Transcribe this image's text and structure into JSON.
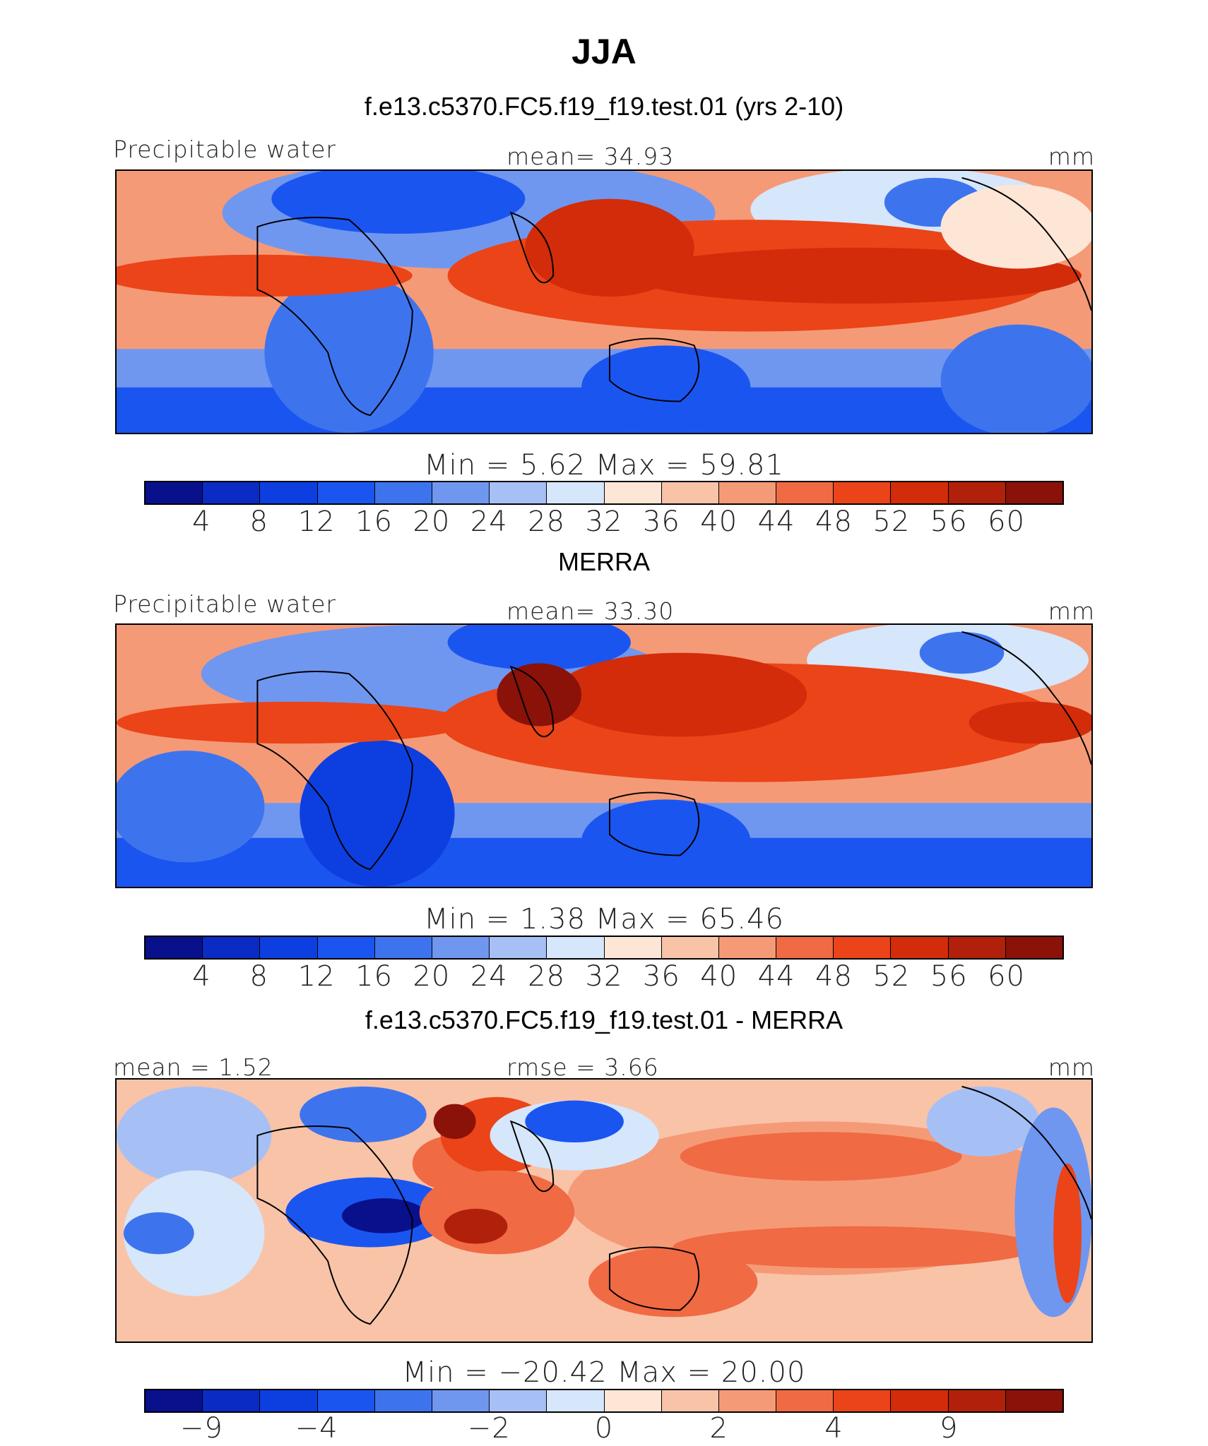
{
  "title": "JJA",
  "panels": [
    {
      "subtitle": "f.e13.c5370.FC5.f19_f19.test.01 (yrs 2-10)",
      "left_label": "Precipitable water",
      "center_label": "mean=   34.93",
      "right_label": "mm",
      "minmax": "Min =     5.62  Max =   59.81",
      "colorbar_ticks": [
        "4",
        "8",
        "12",
        "16",
        "20",
        "24",
        "28",
        "32",
        "36",
        "40",
        "44",
        "48",
        "52",
        "56",
        "60"
      ],
      "type": "absolute"
    },
    {
      "subtitle": "MERRA",
      "left_label": "Precipitable water",
      "center_label": "mean=   33.30",
      "right_label": "mm",
      "minmax": "Min =     1.38  Max =   65.46",
      "colorbar_ticks": [
        "4",
        "8",
        "12",
        "16",
        "20",
        "24",
        "28",
        "32",
        "36",
        "40",
        "44",
        "48",
        "52",
        "56",
        "60"
      ],
      "type": "absolute"
    },
    {
      "subtitle": "f.e13.c5370.FC5.f19_f19.test.01 - MERRA",
      "left_label": "mean =    1.52",
      "center_label": "rmse =    3.66",
      "right_label": "mm",
      "minmax": "Min = −20.42  Max =   20.00",
      "colorbar_ticks": [
        "−9",
        "−4",
        "−2",
        "0",
        "2",
        "4",
        "9"
      ],
      "type": "difference"
    }
  ],
  "colors": {
    "scale": [
      "#08108c",
      "#0a2bc4",
      "#0d3fe0",
      "#1b55f0",
      "#3d74ee",
      "#6f97f0",
      "#a6c0f5",
      "#d6e6fb",
      "#fde6d6",
      "#f9c3a8",
      "#f59a77",
      "#f06a43",
      "#ea4418",
      "#d22c0a",
      "#b0200a",
      "#8a1209"
    ]
  }
}
